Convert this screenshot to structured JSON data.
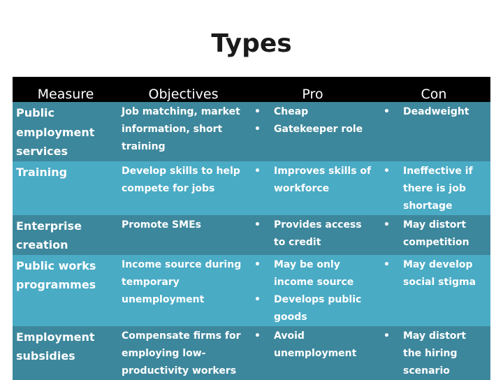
{
  "title": "Types",
  "headers": [
    "Measure",
    "Objectives",
    "Pro",
    "Con"
  ],
  "rows": [
    {
      "measure": "Public employment services",
      "objective": "Job matching, market information, short training",
      "pro": [
        "Cheap",
        "Gatekeeper role"
      ],
      "con": [
        "Deadweight"
      ]
    },
    {
      "measure": "Training",
      "objective": "Develop skills to help compete for jobs",
      "pro": [
        "Improves skills of workforce"
      ],
      "con": [
        "Ineffective if there is job shortage"
      ]
    },
    {
      "measure": "Enterprise creation",
      "objective": "Promote SMEs",
      "pro": [
        "Provides access to credit"
      ],
      "con": [
        "May distort competition"
      ]
    },
    {
      "measure": "Public works programmes",
      "objective": "Income source during temporary unemployment",
      "pro": [
        "May be only income source",
        "Develops public goods"
      ],
      "con": [
        "May develop social stigma"
      ]
    },
    {
      "measure": "Employment subsidies",
      "objective": "Compensate firms for employing low-productivity workers",
      "pro": [
        "Avoid unemployment"
      ],
      "con": [
        "May distort the hiring scenario"
      ]
    }
  ],
  "colors": {
    "header": "#000000",
    "row_dark": "#3d879c",
    "row_light": "#4aabc5"
  }
}
